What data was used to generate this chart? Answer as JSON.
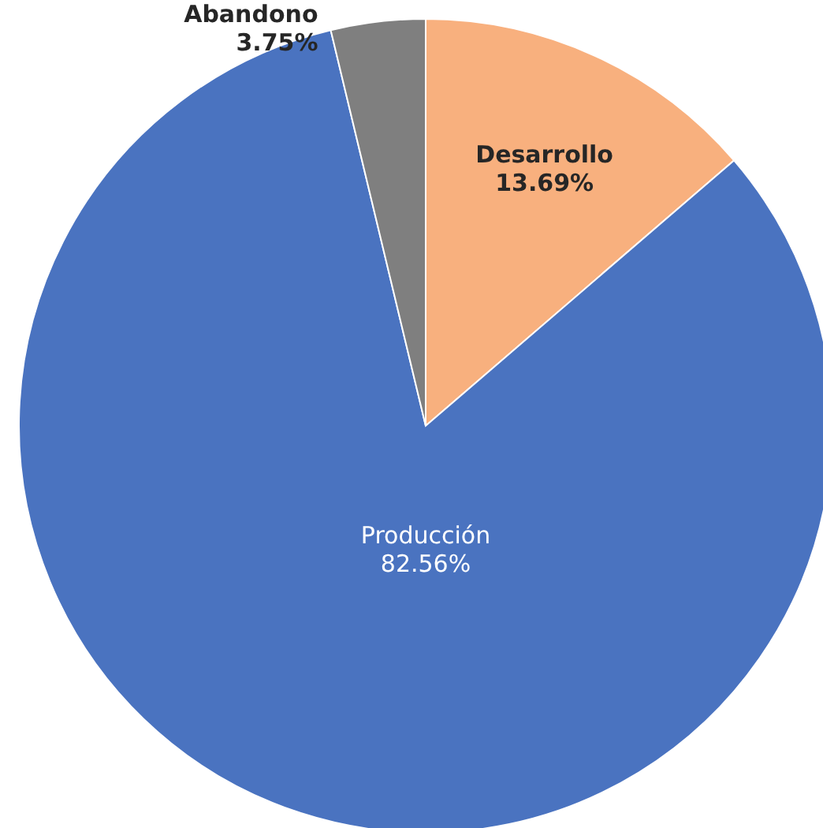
{
  "chart_data": {
    "type": "pie",
    "categories": [
      "Desarrollo",
      "Producción",
      "Abandono"
    ],
    "values": [
      13.69,
      82.56,
      3.75
    ],
    "colors": [
      "#f8b07e",
      "#4a73c0",
      "#7f7f7f"
    ],
    "value_labels": [
      "13.69%",
      "82.56%",
      "3.75%"
    ]
  }
}
